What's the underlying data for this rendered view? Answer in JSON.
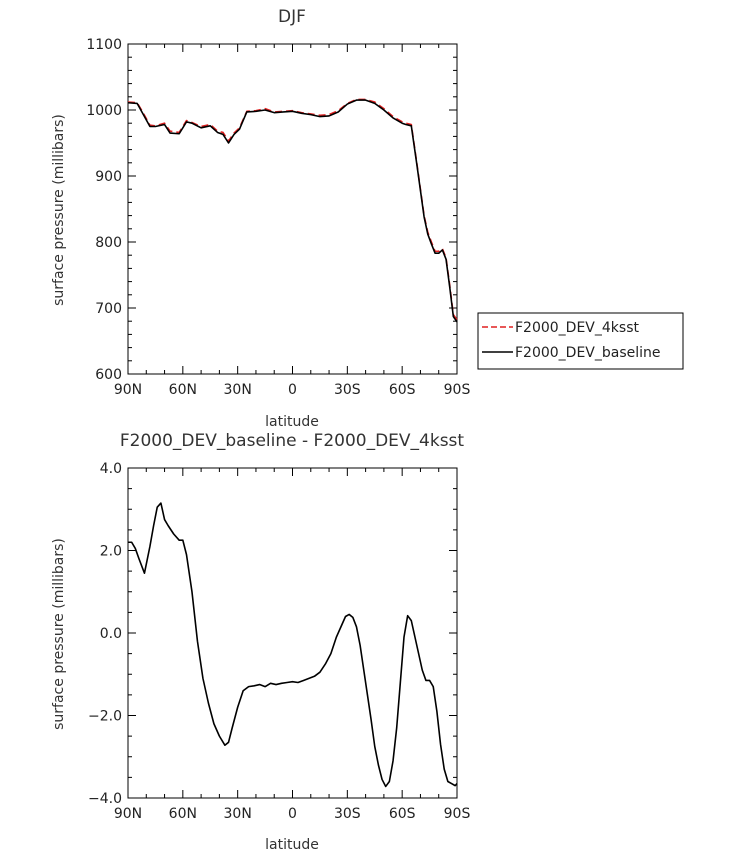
{
  "chart_data": [
    {
      "type": "line",
      "title": "DJF",
      "xlabel": "latitude",
      "ylabel": "surface pressure (millibars)",
      "xlim": [
        -90,
        90
      ],
      "ylim": [
        600,
        1100
      ],
      "x_ticks": [
        -90,
        -60,
        -30,
        0,
        30,
        60,
        90
      ],
      "x_tick_labels": [
        "90N",
        "60N",
        "30N",
        "0",
        "30S",
        "60S",
        "90S"
      ],
      "y_ticks": [
        600,
        700,
        800,
        900,
        1000,
        1100
      ],
      "y_tick_labels": [
        "600",
        "700",
        "800",
        "900",
        "1000",
        "1100"
      ],
      "legend_position": "right",
      "series": [
        {
          "name": "F2000_DEV_4ksst",
          "color": "#e02020",
          "dash": "dashed",
          "x": [
            -90,
            -85,
            -82,
            -78,
            -75,
            -70,
            -67,
            -62,
            -58,
            -55,
            -50,
            -45,
            -41,
            -38,
            -35,
            -32,
            -29,
            -25,
            -20,
            -15,
            -10,
            -5,
            0,
            5,
            10,
            15,
            20,
            25,
            30,
            35,
            40,
            45,
            50,
            55,
            60,
            62,
            65,
            68,
            70,
            72,
            74,
            76,
            78,
            80,
            82,
            84,
            86,
            88,
            90
          ],
          "y": [
            1012,
            1011,
            997,
            977,
            976,
            980,
            968,
            966,
            984,
            981,
            975,
            978,
            968,
            966,
            953,
            965,
            973,
            998,
            999,
            1002,
            997,
            998,
            999,
            996,
            994,
            992,
            993,
            999,
            1010,
            1016,
            1016,
            1012,
            1002,
            990,
            982,
            980,
            978,
            920,
            880,
            840,
            815,
            800,
            786,
            786,
            790,
            776,
            735,
            690,
            682
          ]
        },
        {
          "name": "F2000_DEV_baseline",
          "color": "#000000",
          "dash": "solid",
          "x": [
            -90,
            -85,
            -82,
            -78,
            -75,
            -70,
            -67,
            -62,
            -58,
            -55,
            -50,
            -45,
            -41,
            -38,
            -35,
            -32,
            -29,
            -25,
            -20,
            -15,
            -10,
            -5,
            0,
            5,
            10,
            15,
            20,
            25,
            30,
            35,
            40,
            45,
            50,
            55,
            60,
            62,
            65,
            68,
            70,
            72,
            74,
            76,
            78,
            80,
            82,
            84,
            86,
            88,
            90
          ],
          "y": [
            1011,
            1010,
            995,
            975,
            975,
            978,
            965,
            964,
            982,
            980,
            973,
            976,
            966,
            963,
            950,
            963,
            971,
            997,
            998,
            1000,
            996,
            997,
            998,
            995,
            993,
            990,
            991,
            997,
            1009,
            1015,
            1015,
            1010,
            1000,
            988,
            980,
            978,
            976,
            918,
            878,
            838,
            812,
            797,
            783,
            783,
            788,
            774,
            732,
            687,
            679
          ]
        }
      ]
    },
    {
      "type": "line",
      "title": "F2000_DEV_baseline - F2000_DEV_4ksst",
      "xlabel": "latitude",
      "ylabel": "surface pressure (millibars)",
      "xlim": [
        -90,
        90
      ],
      "ylim": [
        -4.0,
        4.0
      ],
      "x_ticks": [
        -90,
        -60,
        -30,
        0,
        30,
        60,
        90
      ],
      "x_tick_labels": [
        "90N",
        "60N",
        "30N",
        "0",
        "30S",
        "60S",
        "90S"
      ],
      "y_ticks": [
        -4.0,
        -2.0,
        0.0,
        2.0,
        4.0
      ],
      "y_tick_labels": [
        "−4.0",
        "−2.0",
        "0.0",
        "2.0",
        "4.0"
      ],
      "series": [
        {
          "color": "#000000",
          "dash": "solid",
          "x": [
            -90,
            -88,
            -86,
            -84,
            -81,
            -78,
            -76,
            -74,
            -72,
            -70,
            -68,
            -65,
            -62,
            -60,
            -58,
            -55,
            -52,
            -49,
            -46,
            -43,
            -40,
            -37,
            -35,
            -33,
            -30,
            -27,
            -24,
            -21,
            -18,
            -15,
            -12,
            -9,
            -6,
            -3,
            0,
            3,
            6,
            9,
            12,
            15,
            18,
            21,
            24,
            27,
            29,
            31,
            33,
            35,
            37,
            39,
            41,
            43,
            45,
            47,
            49,
            51,
            53,
            55,
            57,
            59,
            61,
            63,
            65,
            67,
            69,
            71,
            73,
            75,
            77,
            79,
            81,
            83,
            85,
            87,
            89,
            90
          ],
          "y": [
            2.2,
            2.2,
            2.05,
            1.8,
            1.45,
            2.1,
            2.6,
            3.05,
            3.15,
            2.75,
            2.6,
            2.4,
            2.25,
            2.25,
            1.9,
            1.0,
            -0.2,
            -1.1,
            -1.7,
            -2.2,
            -2.5,
            -2.72,
            -2.65,
            -2.3,
            -1.8,
            -1.4,
            -1.3,
            -1.28,
            -1.25,
            -1.3,
            -1.22,
            -1.25,
            -1.22,
            -1.2,
            -1.18,
            -1.2,
            -1.15,
            -1.1,
            -1.05,
            -0.95,
            -0.75,
            -0.5,
            -0.1,
            0.2,
            0.4,
            0.45,
            0.38,
            0.15,
            -0.3,
            -0.9,
            -1.5,
            -2.1,
            -2.75,
            -3.2,
            -3.55,
            -3.72,
            -3.6,
            -3.1,
            -2.3,
            -1.2,
            -0.1,
            0.42,
            0.3,
            -0.1,
            -0.5,
            -0.9,
            -1.15,
            -1.15,
            -1.3,
            -1.9,
            -2.7,
            -3.3,
            -3.6,
            -3.65,
            -3.7,
            -3.65
          ]
        }
      ]
    }
  ]
}
